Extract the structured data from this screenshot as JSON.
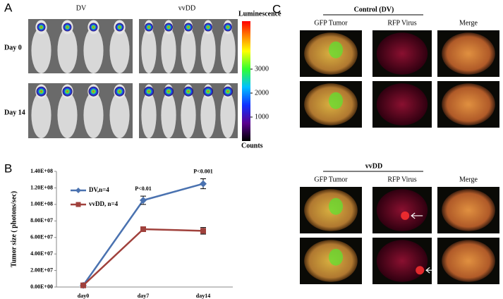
{
  "panel_a": {
    "label": "A",
    "groups": [
      "DV",
      "vvDD"
    ],
    "rows": [
      "Day 0",
      "Day 14"
    ],
    "colorbar": {
      "title": "Luminescence",
      "unit": "Counts",
      "lim": [
        0,
        5000
      ],
      "ticks": [
        1000,
        2000,
        3000
      ]
    }
  },
  "panel_b": {
    "label": "B"
  },
  "chart_data": {
    "type": "line",
    "ylabel": "Tumor size ( photons/sec)",
    "categories": [
      "day0",
      "day7",
      "day14"
    ],
    "series": [
      {
        "name": "DV,n=4",
        "color": "#4a72b0",
        "marker": "diamond",
        "values": [
          2000000,
          105000000,
          125000000
        ],
        "errors": [
          1000000,
          5000000,
          6000000
        ]
      },
      {
        "name": "vvDD, n=4",
        "color": "#a0413c",
        "marker": "square",
        "values": [
          2000000,
          70000000,
          68000000
        ],
        "errors": [
          1000000,
          2000000,
          4000000
        ]
      }
    ],
    "ylim": [
      0,
      140000000
    ],
    "yticks": [
      {
        "value": 0,
        "label": "0.00E+00"
      },
      {
        "value": 20000000,
        "label": "2.00E+07"
      },
      {
        "value": 40000000,
        "label": "4.00E+07"
      },
      {
        "value": 60000000,
        "label": "6.00E+07"
      },
      {
        "value": 80000000,
        "label": "8.00E+07"
      },
      {
        "value": 100000000,
        "label": "1.00E+08"
      },
      {
        "value": 120000000,
        "label": "1.20E+08"
      },
      {
        "value": 140000000,
        "label": "1.40E+08"
      }
    ],
    "annotations": [
      {
        "text": "P<0.01",
        "category": "day7"
      },
      {
        "text": "P<0.001",
        "category": "day14"
      }
    ],
    "legend": "upper left",
    "grid": false
  },
  "panel_c": {
    "label": "C",
    "sections": [
      {
        "title": "Control (DV)",
        "columns": [
          "GFP Tumor",
          "RFP Virus",
          "Merge"
        ]
      },
      {
        "title": "vvDD",
        "columns": [
          "GFP Tumor",
          "RFP Virus",
          "Merge"
        ]
      }
    ]
  }
}
